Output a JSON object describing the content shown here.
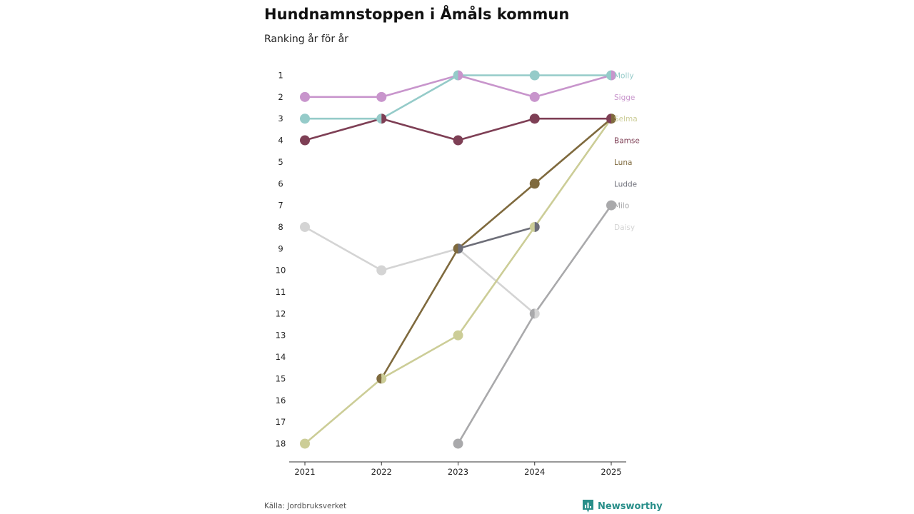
{
  "header": {
    "title": "Hundnamnstoppen i Åmåls kommun",
    "subtitle": "Ranking år för år"
  },
  "footer": {
    "source": "Källa: Jordbruksverket",
    "brand": "Newsworthy"
  },
  "chart_data": {
    "type": "line",
    "title": "Hundnamnstoppen i Åmåls kommun",
    "subtitle": "Ranking år för år",
    "xlabel": "",
    "ylabel": "",
    "categories": [
      "2021",
      "2022",
      "2023",
      "2024",
      "2025"
    ],
    "yticks": [
      "1",
      "2",
      "3",
      "4",
      "5",
      "6",
      "7",
      "8",
      "9",
      "10",
      "11",
      "12",
      "13",
      "14",
      "15",
      "16",
      "17",
      "18"
    ],
    "ylim": [
      1,
      18
    ],
    "y_inverted": true,
    "series": [
      {
        "name": "Daisy",
        "color": "#d4d4d4",
        "values": [
          8,
          10,
          9,
          12,
          null
        ]
      },
      {
        "name": "Milo",
        "color": "#a9a9ab",
        "values": [
          null,
          null,
          18,
          12,
          7
        ]
      },
      {
        "name": "Ludde",
        "color": "#6d6e78",
        "values": [
          null,
          null,
          9,
          8,
          null
        ]
      },
      {
        "name": "Selma",
        "color": "#cccd97",
        "values": [
          18,
          15,
          13,
          8,
          3
        ]
      },
      {
        "name": "Luna",
        "color": "#7f6a3e",
        "values": [
          null,
          15,
          9,
          6,
          3
        ]
      },
      {
        "name": "Bamse",
        "color": "#7e3f55",
        "values": [
          4,
          3,
          4,
          3,
          3
        ]
      },
      {
        "name": "Sigge",
        "color": "#c895cc",
        "values": [
          2,
          2,
          1,
          2,
          1
        ]
      },
      {
        "name": "Molly",
        "color": "#95cbc9",
        "values": [
          3,
          3,
          1,
          1,
          1
        ]
      }
    ],
    "legend_order": [
      "Molly",
      "Sigge",
      "Selma",
      "Bamse",
      "Luna",
      "Ludde",
      "Milo",
      "Daisy"
    ]
  }
}
